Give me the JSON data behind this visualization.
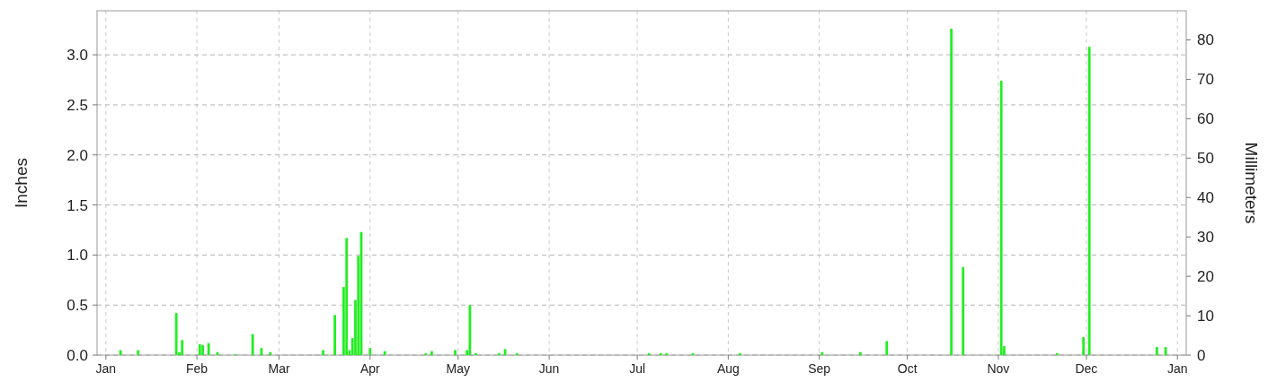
{
  "chart_data": {
    "type": "bar",
    "ylabel": "Inches",
    "y2label": "Millimeters",
    "categories": [
      "Jan",
      null,
      null,
      null,
      null,
      null,
      null,
      null,
      null,
      null,
      null,
      null,
      null,
      null,
      null,
      null,
      null,
      null,
      null,
      null,
      null,
      null,
      null,
      null,
      null,
      null,
      null,
      null,
      null,
      null,
      null,
      "Feb",
      null,
      null,
      null,
      null,
      null,
      null,
      null,
      null,
      null,
      null,
      null,
      null,
      null,
      null,
      null,
      null,
      null,
      null,
      null,
      null,
      null,
      null,
      null,
      null,
      null,
      null,
      null,
      "Mar",
      null,
      null,
      null,
      null,
      null,
      null,
      null,
      null,
      null,
      null,
      null,
      null,
      null,
      null,
      null,
      null,
      null,
      null,
      null,
      null,
      null,
      null,
      null,
      null,
      null,
      null,
      null,
      null,
      null,
      null,
      "Apr",
      null,
      null,
      null,
      null,
      null,
      null,
      null,
      null,
      null,
      null,
      null,
      null,
      null,
      null,
      null,
      null,
      null,
      null,
      null,
      null,
      null,
      null,
      null,
      null,
      null,
      null,
      null,
      null,
      null,
      "May",
      null,
      null,
      null,
      null,
      null,
      null,
      null,
      null,
      null,
      null,
      null,
      null,
      null,
      null,
      null,
      null,
      null,
      null,
      null,
      null,
      null,
      null,
      null,
      null,
      null,
      null,
      null,
      null,
      null,
      null,
      "Jun",
      null,
      null,
      null,
      null,
      null,
      null,
      null,
      null,
      null,
      null,
      null,
      null,
      null,
      null,
      null,
      null,
      null,
      null,
      null,
      null,
      null,
      null,
      null,
      null,
      null,
      null,
      null,
      null,
      null,
      "Jul",
      null,
      null,
      null,
      null,
      null,
      null,
      null,
      null,
      null,
      null,
      null,
      null,
      null,
      null,
      null,
      null,
      null,
      null,
      null,
      null,
      null,
      null,
      null,
      null,
      null,
      null,
      null,
      null,
      null,
      null,
      "Aug",
      null,
      null,
      null,
      null,
      null,
      null,
      null,
      null,
      null,
      null,
      null,
      null,
      null,
      null,
      null,
      null,
      null,
      null,
      null,
      null,
      null,
      null,
      null,
      null,
      null,
      null,
      null,
      null,
      null,
      null,
      "Sep",
      null,
      null,
      null,
      null,
      null,
      null,
      null,
      null,
      null,
      null,
      null,
      null,
      null,
      null,
      null,
      null,
      null,
      null,
      null,
      null,
      null,
      null,
      null,
      null,
      null,
      null,
      null,
      null,
      null,
      "Oct",
      null,
      null,
      null,
      null,
      null,
      null,
      null,
      null,
      null,
      null,
      null,
      null,
      null,
      null,
      null,
      null,
      null,
      null,
      null,
      null,
      null,
      null,
      null,
      null,
      null,
      null,
      null,
      null,
      null,
      null,
      "Nov",
      null,
      null,
      null,
      null,
      null,
      null,
      null,
      null,
      null,
      null,
      null,
      null,
      null,
      null,
      null,
      null,
      null,
      null,
      null,
      null,
      null,
      null,
      null,
      null,
      null,
      null,
      null,
      null,
      null,
      "Dec",
      null,
      null,
      null,
      null,
      null,
      null,
      null,
      null,
      null,
      null,
      null,
      null,
      null,
      null,
      null,
      null,
      null,
      null,
      null,
      null,
      null,
      null,
      null,
      null,
      null,
      null,
      null,
      null,
      null,
      null,
      "Jan"
    ],
    "series": [
      {
        "color": "#22ee22",
        "values": [
          null,
          null,
          null,
          null,
          null,
          0.05,
          null,
          null,
          null,
          null,
          null,
          0.05,
          null,
          null,
          null,
          null,
          null,
          null,
          null,
          null,
          null,
          null,
          null,
          null,
          0.42,
          0.03,
          0.15,
          null,
          null,
          null,
          null,
          null,
          0.11,
          0.1,
          null,
          0.12,
          null,
          null,
          0.03,
          null,
          null,
          null,
          null,
          null,
          0.01,
          null,
          null,
          null,
          null,
          null,
          0.21,
          null,
          null,
          0.07,
          null,
          null,
          0.03,
          null,
          null,
          null,
          null,
          null,
          null,
          null,
          null,
          null,
          null,
          null,
          null,
          null,
          null,
          null,
          null,
          null,
          0.05,
          null,
          null,
          null,
          0.4,
          null,
          null,
          0.68,
          1.17,
          0.05,
          0.17,
          0.55,
          0.99,
          1.23,
          null,
          null,
          0.07,
          null,
          null,
          null,
          null,
          0.04,
          null,
          null,
          null,
          null,
          null,
          null,
          null,
          null,
          null,
          null,
          null,
          null,
          null,
          0.02,
          null,
          0.04,
          null,
          null,
          null,
          null,
          null,
          null,
          null,
          0.05,
          null,
          null,
          null,
          0.05,
          0.5,
          null,
          0.02,
          null,
          null,
          null,
          null,
          null,
          null,
          null,
          0.02,
          null,
          0.06,
          null,
          null,
          null,
          0.02,
          null,
          null,
          null,
          null,
          null,
          null,
          null,
          null,
          null,
          null,
          null,
          null,
          null,
          null,
          null,
          null,
          null,
          null,
          null,
          null,
          null,
          null,
          null,
          null,
          null,
          null,
          null,
          null,
          null,
          null,
          null,
          null,
          null,
          null,
          null,
          null,
          null,
          null,
          null,
          null,
          null,
          null,
          null,
          null,
          0.02,
          null,
          null,
          null,
          0.02,
          null,
          0.02,
          null,
          null,
          null,
          null,
          null,
          null,
          null,
          null,
          0.02,
          null,
          null,
          null,
          null,
          null,
          null,
          null,
          null,
          null,
          null,
          null,
          null,
          null,
          null,
          null,
          0.02,
          null,
          null,
          null,
          null,
          null,
          null,
          null,
          null,
          null,
          null,
          null,
          null,
          null,
          null,
          null,
          null,
          null,
          null,
          null,
          null,
          null,
          null,
          null,
          null,
          null,
          null,
          null,
          0.03,
          null,
          null,
          null,
          null,
          null,
          null,
          null,
          null,
          null,
          null,
          null,
          null,
          0.03,
          null,
          null,
          null,
          null,
          null,
          null,
          null,
          null,
          0.14,
          null,
          null,
          null,
          null,
          null,
          null,
          null,
          null,
          null,
          null,
          null,
          null,
          null,
          null,
          null,
          null,
          null,
          null,
          null,
          null,
          null,
          3.26,
          null,
          null,
          null,
          0.88,
          null,
          null,
          null,
          null,
          null,
          null,
          null,
          null,
          null,
          null,
          null,
          null,
          2.74,
          0.09,
          null,
          null,
          null,
          null,
          null,
          null,
          null,
          null,
          null,
          null,
          null,
          null,
          null,
          null,
          null,
          null,
          null,
          0.02,
          null,
          null,
          null,
          null,
          null,
          null,
          null,
          null,
          0.18,
          null,
          3.08,
          null,
          null,
          null,
          null,
          null,
          null,
          null,
          null,
          null,
          null,
          null,
          null,
          null,
          null,
          null,
          null,
          null,
          null,
          null,
          null,
          null,
          null,
          0.08,
          null,
          null,
          0.08,
          null,
          null,
          null,
          null
        ]
      }
    ],
    "ylim": [
      0,
      3.44
    ],
    "yticks": [
      {
        "value": 0,
        "label": "0.0"
      },
      {
        "value": 0.5,
        "label": "0.5"
      },
      {
        "value": 1,
        "label": "1.0"
      },
      {
        "value": 1.5,
        "label": "1.5"
      },
      {
        "value": 2,
        "label": "2.0"
      },
      {
        "value": 2.5,
        "label": "2.5"
      },
      {
        "value": 3,
        "label": "3.0"
      }
    ],
    "y2lim": [
      0,
      87.4
    ],
    "y2ticks": [
      0,
      10,
      20,
      30,
      40,
      50,
      60,
      70,
      80
    ],
    "grid": true
  }
}
